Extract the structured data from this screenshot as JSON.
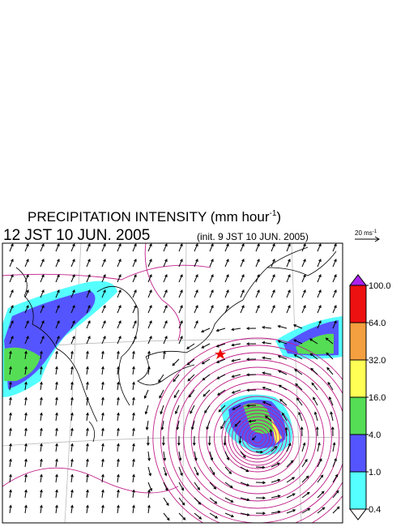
{
  "header": {
    "title": "PRECIPITATION INTENSITY (mm hour",
    "title_sup": "-1",
    "title_end": ")",
    "valid_time": "12 JST 10 JUN. 2005",
    "init_time": "(init. 9 JST 10 JUN. 2005)"
  },
  "vector_reference": {
    "label": "20 ms",
    "sup": "-1"
  },
  "colorbar": {
    "levels": [
      {
        "value": 100,
        "label": "100.0"
      },
      {
        "value": 64,
        "label": "64.0"
      },
      {
        "value": 32,
        "label": "32.0"
      },
      {
        "value": 16,
        "label": "16.0"
      },
      {
        "value": 4,
        "label": "4.0"
      },
      {
        "value": 1,
        "label": "1.0"
      },
      {
        "value": 0.4,
        "label": "0.4"
      }
    ],
    "colors": [
      "#ee1111",
      "#f5a040",
      "#ffff55",
      "#55dd55",
      "#5555ff",
      "#55ffff"
    ],
    "over_color": "#aa22ee",
    "under_color": "#ffffff"
  }
}
